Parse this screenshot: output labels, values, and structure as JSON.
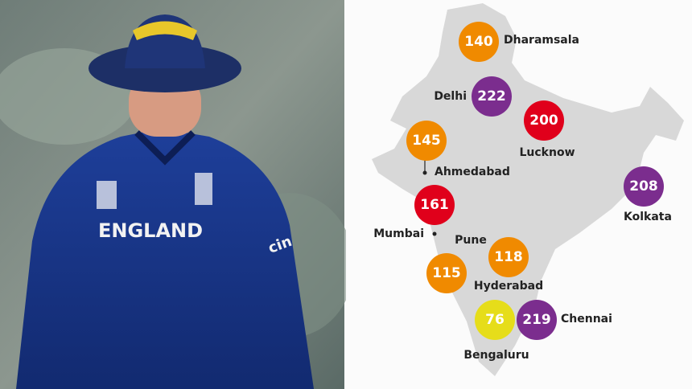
{
  "photo": {
    "jersey_text": "ENGLAND",
    "sleeve_text": "cin"
  },
  "map": {
    "venues": [
      {
        "name": "Dharamsala",
        "score": 140,
        "color": "#f08a00"
      },
      {
        "name": "Delhi",
        "score": 222,
        "color": "#7b2d8e"
      },
      {
        "name": "Lucknow",
        "score": 200,
        "color": "#e0001b"
      },
      {
        "name": "Ahmedabad",
        "score": 145,
        "color": "#f08a00"
      },
      {
        "name": "Kolkata",
        "score": 208,
        "color": "#7b2d8e"
      },
      {
        "name": "Mumbai",
        "score": 161,
        "color": "#e0001b"
      },
      {
        "name": "Pune",
        "score": 115,
        "color": "#f08a00"
      },
      {
        "name": "Hyderabad",
        "score": 118,
        "color": "#f08a00"
      },
      {
        "name": "Chennai",
        "score": 219,
        "color": "#7b2d8e"
      },
      {
        "name": "Bengaluru",
        "score": 76,
        "color": "#e6dd1a"
      }
    ]
  }
}
